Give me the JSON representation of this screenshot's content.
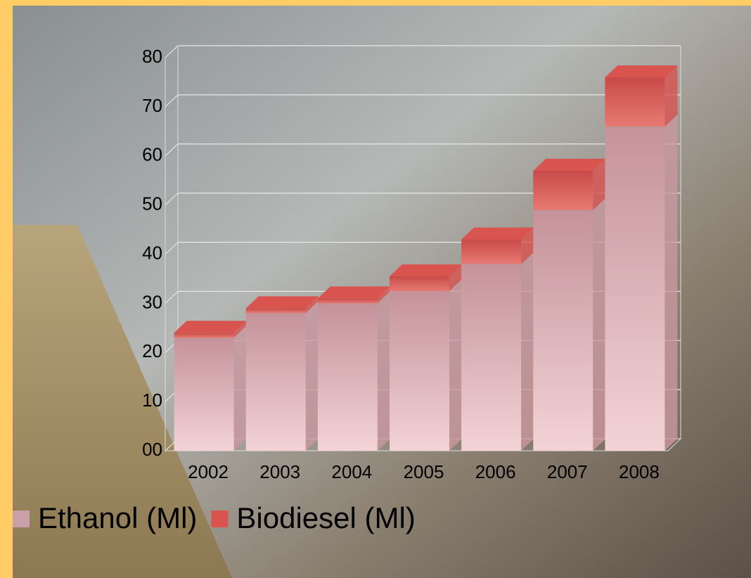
{
  "chart_data": {
    "type": "bar",
    "stacked": true,
    "categories": [
      "2002",
      "2003",
      "2004",
      "2005",
      "2006",
      "2007",
      "2008"
    ],
    "series": [
      {
        "name": "Ethanol (Ml)",
        "color": "#c9979f",
        "values": [
          23,
          28,
          30,
          32.5,
          38,
          49,
          66
        ]
      },
      {
        "name": "Biodiesel (Ml)",
        "color": "#d9534f",
        "values": [
          1,
          1,
          1,
          3,
          5,
          8,
          10
        ]
      }
    ],
    "ylim": [
      0,
      80
    ],
    "yticks": [
      {
        "value": 0,
        "label": "00"
      },
      10,
      20,
      30,
      40,
      50,
      60,
      70,
      80
    ],
    "grid": true,
    "legend": "bottom-left"
  }
}
